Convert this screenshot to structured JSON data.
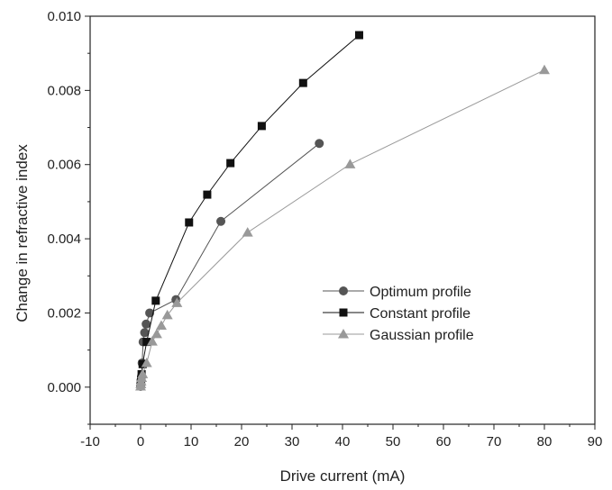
{
  "chart_data": {
    "type": "scatter",
    "title": "",
    "xlabel": "Drive current (mA)",
    "ylabel": "Change in refractive index",
    "xlim": [
      -10,
      90
    ],
    "ylim": [
      -0.001,
      0.01
    ],
    "x_ticks": [
      -10,
      0,
      10,
      20,
      30,
      40,
      50,
      60,
      70,
      80,
      90
    ],
    "x_tick_labels": [
      "-10",
      "0",
      "10",
      "20",
      "30",
      "40",
      "50",
      "60",
      "70",
      "80",
      "90"
    ],
    "y_ticks": [
      0.0,
      0.002,
      0.004,
      0.006,
      0.008,
      0.01
    ],
    "y_tick_labels": [
      "0.000",
      "0.002",
      "0.004",
      "0.006",
      "0.008",
      "0.010"
    ],
    "grid": false,
    "legend_position": "center-right",
    "series": [
      {
        "name": "Optimum profile",
        "marker": "circle",
        "color": "#555555",
        "x": [
          0.0,
          0.05,
          0.1,
          0.2,
          0.3,
          0.5,
          0.8,
          1.1,
          1.8,
          7.0,
          15.9,
          35.4
        ],
        "y": [
          2e-05,
          0.0001,
          0.0002,
          0.0003,
          0.00065,
          0.00122,
          0.00147,
          0.0017,
          0.002,
          0.00236,
          0.00447,
          0.00657
        ]
      },
      {
        "name": "Constant profile",
        "marker": "square",
        "color": "#111111",
        "x": [
          0.0,
          0.05,
          0.1,
          0.2,
          0.4,
          1.2,
          3.0,
          9.6,
          13.2,
          17.8,
          24.0,
          32.2,
          43.3
        ],
        "y": [
          2e-05,
          0.0001,
          0.0002,
          0.00035,
          0.00062,
          0.00122,
          0.00233,
          0.00444,
          0.00519,
          0.00604,
          0.00704,
          0.0082,
          0.00949
        ]
      },
      {
        "name": "Gaussian profile",
        "marker": "triangle",
        "color": "#999999",
        "x": [
          0.0,
          0.05,
          0.1,
          0.2,
          0.4,
          1.2,
          2.3,
          3.2,
          4.1,
          5.3,
          7.2,
          21.2,
          41.5,
          80.0
        ],
        "y": [
          2e-05,
          8e-05,
          0.00015,
          0.00025,
          0.00035,
          0.00065,
          0.00123,
          0.00143,
          0.00166,
          0.00194,
          0.00227,
          0.00417,
          0.00601,
          0.00855
        ]
      }
    ]
  }
}
